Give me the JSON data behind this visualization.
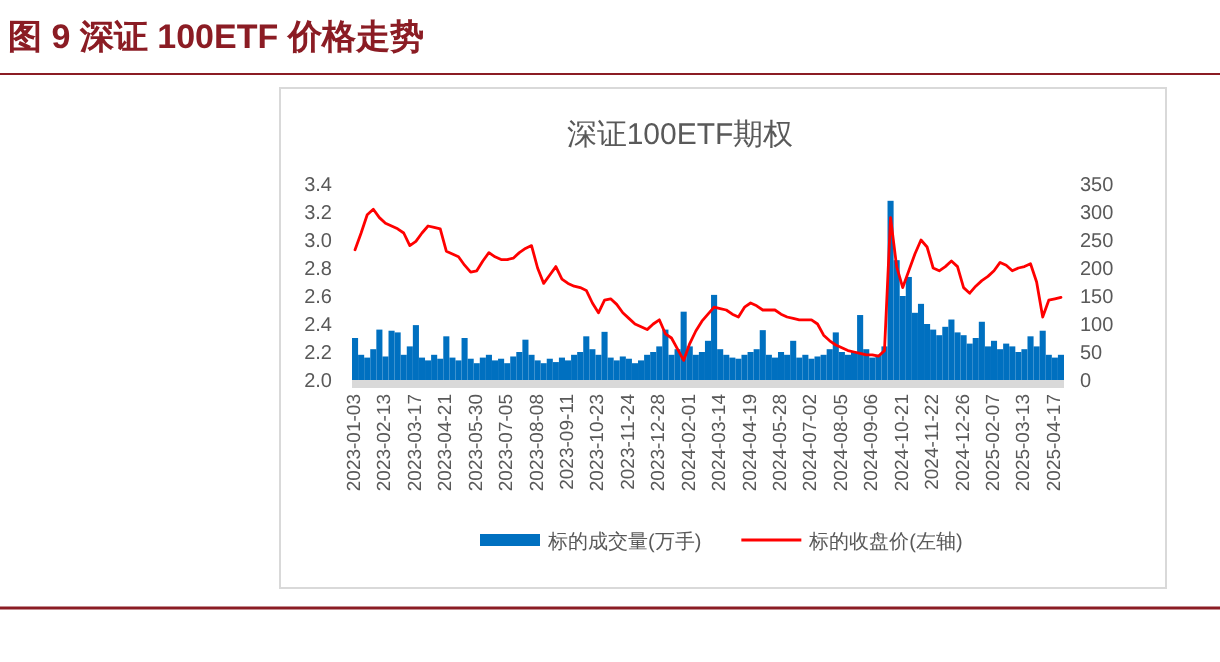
{
  "chart_data": {
    "type": "bar",
    "title": "图 9 深证 100ETF 价格走势",
    "subtitle": "深证100ETF期权",
    "categories": [
      "2023-01-03",
      null,
      null,
      null,
      null,
      "2023-02-13",
      null,
      null,
      null,
      null,
      "2023-03-17",
      null,
      null,
      null,
      null,
      "2023-04-21",
      null,
      null,
      null,
      null,
      "2023-05-30",
      null,
      null,
      null,
      null,
      "2023-07-05",
      null,
      null,
      null,
      null,
      "2023-08-08",
      null,
      null,
      null,
      null,
      "2023-09-11",
      null,
      null,
      null,
      null,
      "2023-10-23",
      null,
      null,
      null,
      null,
      "2023-11-24",
      null,
      null,
      null,
      null,
      "2023-12-28",
      null,
      null,
      null,
      null,
      "2024-02-01",
      null,
      null,
      null,
      null,
      "2024-03-14",
      null,
      null,
      null,
      null,
      "2024-04-19",
      null,
      null,
      null,
      null,
      "2024-05-28",
      null,
      null,
      null,
      null,
      "2024-07-02",
      null,
      null,
      null,
      null,
      "2024-08-05",
      null,
      null,
      null,
      null,
      "2024-09-06",
      null,
      null,
      null,
      null,
      "2024-10-21",
      null,
      null,
      null,
      null,
      "2024-11-22",
      null,
      null,
      null,
      null,
      "2024-12-26",
      null,
      null,
      null,
      null,
      "2025-02-07",
      null,
      null,
      null,
      null,
      "2025-03-13",
      null,
      null,
      null,
      null,
      "2025-04-17",
      null
    ],
    "series": [
      {
        "name": "标的成交量(万手)",
        "axis": "y2",
        "color": "#0070c0",
        "values": [
          75,
          45,
          40,
          55,
          90,
          42,
          88,
          85,
          45,
          60,
          98,
          40,
          35,
          45,
          38,
          78,
          40,
          35,
          75,
          38,
          30,
          40,
          45,
          35,
          38,
          30,
          42,
          50,
          72,
          45,
          35,
          30,
          38,
          32,
          40,
          35,
          45,
          50,
          78,
          55,
          45,
          86,
          40,
          35,
          42,
          38,
          30,
          35,
          45,
          50,
          60,
          90,
          45,
          55,
          122,
          60,
          45,
          50,
          70,
          152,
          55,
          45,
          40,
          38,
          45,
          50,
          55,
          89,
          45,
          40,
          50,
          45,
          70,
          40,
          45,
          38,
          42,
          45,
          55,
          85,
          50,
          45,
          50,
          116,
          55,
          40,
          45,
          60,
          320,
          214,
          150,
          184,
          120,
          136,
          100,
          90,
          80,
          95,
          108,
          85,
          80,
          65,
          75,
          104,
          60,
          70,
          55,
          65,
          60,
          50,
          55,
          78,
          60,
          88,
          45,
          40,
          45
        ]
      },
      {
        "name": "标的收盘价(左轴)",
        "type": "line",
        "color": "#ff0000",
        "values": [
          2.93,
          3.05,
          3.18,
          3.22,
          3.16,
          3.12,
          3.1,
          3.08,
          3.05,
          2.96,
          2.99,
          3.05,
          3.1,
          3.09,
          3.08,
          2.92,
          2.9,
          2.88,
          2.82,
          2.77,
          2.78,
          2.85,
          2.91,
          2.88,
          2.86,
          2.86,
          2.87,
          2.91,
          2.94,
          2.96,
          2.8,
          2.69,
          2.75,
          2.81,
          2.72,
          2.69,
          2.67,
          2.66,
          2.64,
          2.55,
          2.48,
          2.57,
          2.58,
          2.54,
          2.48,
          2.44,
          2.4,
          2.38,
          2.36,
          2.4,
          2.43,
          2.33,
          2.3,
          2.22,
          2.14,
          2.26,
          2.35,
          2.42,
          2.47,
          2.52,
          2.51,
          2.5,
          2.47,
          2.45,
          2.52,
          2.55,
          2.53,
          2.5,
          2.5,
          2.5,
          2.47,
          2.45,
          2.44,
          2.43,
          2.43,
          2.43,
          2.4,
          2.32,
          2.28,
          2.25,
          2.23,
          2.21,
          2.2,
          2.19,
          2.18,
          2.18,
          2.17,
          2.21,
          3.16,
          2.81,
          2.66,
          2.78,
          2.9,
          3.0,
          2.95,
          2.8,
          2.78,
          2.81,
          2.85,
          2.81,
          2.66,
          2.62,
          2.67,
          2.71,
          2.74,
          2.78,
          2.84,
          2.82,
          2.78,
          2.8,
          2.81,
          2.83,
          2.7,
          2.45,
          2.57,
          2.58,
          2.59
        ]
      }
    ],
    "ylim": [
      2.0,
      3.4
    ],
    "yticks": [
      {
        "value": 2.0,
        "label": "2.0"
      },
      {
        "value": 2.2,
        "label": "2.2"
      },
      {
        "value": 2.4,
        "label": "2.4"
      },
      {
        "value": 2.6,
        "label": "2.6"
      },
      {
        "value": 2.8,
        "label": "2.8"
      },
      {
        "value": 3.0,
        "label": "3.0"
      },
      {
        "value": 3.2,
        "label": "3.2"
      },
      {
        "value": 3.4,
        "label": "3.4"
      }
    ],
    "y2lim": [
      0,
      350
    ],
    "y2ticks": [
      0,
      50,
      100,
      150,
      200,
      250,
      300,
      350
    ],
    "legend": "bottom",
    "grid": false
  }
}
